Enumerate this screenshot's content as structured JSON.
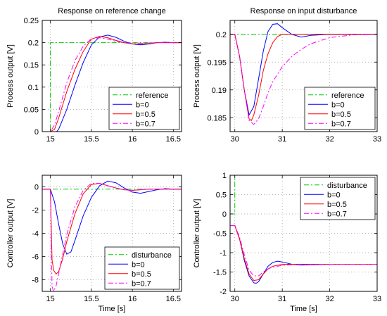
{
  "chart_data": [
    {
      "type": "line",
      "title": "Response on reference change",
      "xlabel": "",
      "ylabel": "Process output [V]",
      "xlim": [
        14.9,
        16.6
      ],
      "ylim": [
        0,
        0.25
      ],
      "xticks": [
        15,
        15.5,
        16,
        16.5
      ],
      "xtick_labels": [
        "15",
        "15.5",
        "16",
        "16.5"
      ],
      "yticks": [
        0,
        0.05,
        0.1,
        0.15,
        0.2,
        0.25
      ],
      "ytick_labels": [
        "0",
        "0.05",
        "0.1",
        "0.15",
        "0.2",
        "0.25"
      ],
      "grid": true,
      "legend": "bottom-right",
      "series": [
        {
          "name": "reference",
          "color": "#00cc00",
          "style": "dashdot",
          "x": [
            14.9,
            15.0,
            15.0,
            16.6
          ],
          "y": [
            0,
            0,
            0.2,
            0.2
          ]
        },
        {
          "name": "b=0",
          "color": "#0000ff",
          "style": "solid",
          "x": [
            14.9,
            15.0,
            15.05,
            15.1,
            15.2,
            15.3,
            15.4,
            15.5,
            15.6,
            15.7,
            15.8,
            15.9,
            16.0,
            16.1,
            16.2,
            16.3,
            16.4,
            16.5,
            16.6
          ],
          "y": [
            0,
            0,
            -0.005,
            0.005,
            0.05,
            0.105,
            0.155,
            0.195,
            0.213,
            0.217,
            0.212,
            0.203,
            0.197,
            0.195,
            0.197,
            0.2,
            0.201,
            0.2,
            0.2
          ]
        },
        {
          "name": "b=0.5",
          "color": "#ff0000",
          "style": "solid",
          "x": [
            14.9,
            15.0,
            15.05,
            15.1,
            15.2,
            15.3,
            15.4,
            15.5,
            15.6,
            15.7,
            15.8,
            15.9,
            16.0,
            16.1,
            16.2,
            16.3,
            16.4,
            16.5,
            16.6
          ],
          "y": [
            0,
            0,
            0.005,
            0.03,
            0.09,
            0.14,
            0.18,
            0.208,
            0.214,
            0.211,
            0.205,
            0.2,
            0.197,
            0.197,
            0.198,
            0.2,
            0.2,
            0.2,
            0.2
          ]
        },
        {
          "name": "b=0.7",
          "color": "#ff00ff",
          "style": "dashdot",
          "x": [
            14.9,
            15.0,
            15.05,
            15.1,
            15.2,
            15.3,
            15.4,
            15.5,
            15.6,
            15.7,
            15.8,
            15.9,
            16.0,
            16.1,
            16.2,
            16.3,
            16.4,
            16.5,
            16.6
          ],
          "y": [
            0,
            0,
            0.015,
            0.045,
            0.11,
            0.16,
            0.192,
            0.209,
            0.211,
            0.208,
            0.203,
            0.2,
            0.198,
            0.198,
            0.199,
            0.2,
            0.2,
            0.2,
            0.2
          ]
        }
      ]
    },
    {
      "type": "line",
      "title": "Response on input disturbance",
      "xlabel": "",
      "ylabel": "Process output [V]",
      "xlim": [
        29.9,
        33
      ],
      "ylim": [
        0.1825,
        0.2025
      ],
      "xticks": [
        30,
        31,
        32,
        33
      ],
      "xtick_labels": [
        "30",
        "31",
        "32",
        "33"
      ],
      "yticks": [
        0.185,
        0.19,
        0.195,
        0.2
      ],
      "ytick_labels": [
        "0.185",
        "0.19",
        "0.195",
        "0.2"
      ],
      "grid": true,
      "legend": "bottom-right",
      "series": [
        {
          "name": "reference",
          "color": "#00cc00",
          "style": "dashdot",
          "x": [
            29.9,
            33
          ],
          "y": [
            0.2,
            0.2
          ]
        },
        {
          "name": "b=0",
          "color": "#0000ff",
          "style": "solid",
          "x": [
            29.9,
            30.0,
            30.1,
            30.2,
            30.3,
            30.4,
            30.5,
            30.6,
            30.7,
            30.8,
            30.9,
            31.0,
            31.2,
            31.4,
            31.6,
            32.0,
            32.5,
            33.0
          ],
          "y": [
            0.2,
            0.2,
            0.196,
            0.19,
            0.1855,
            0.187,
            0.192,
            0.197,
            0.2005,
            0.2018,
            0.2019,
            0.2012,
            0.2,
            0.1995,
            0.1998,
            0.2,
            0.2,
            0.2
          ]
        },
        {
          "name": "b=0.5",
          "color": "#ff0000",
          "style": "solid",
          "x": [
            29.9,
            30.0,
            30.1,
            30.2,
            30.3,
            30.35,
            30.4,
            30.5,
            30.6,
            30.7,
            30.8,
            30.9,
            31.0,
            31.2,
            31.4,
            31.6,
            32.0,
            32.5,
            33.0
          ],
          "y": [
            0.2,
            0.2,
            0.196,
            0.19,
            0.1848,
            0.1845,
            0.1855,
            0.189,
            0.1935,
            0.1965,
            0.1985,
            0.1996,
            0.2,
            0.2,
            0.2,
            0.2,
            0.2,
            0.2,
            0.2
          ]
        },
        {
          "name": "b=0.7",
          "color": "#ff00ff",
          "style": "dashdot",
          "x": [
            29.9,
            30.0,
            30.1,
            30.2,
            30.3,
            30.4,
            30.5,
            30.6,
            30.7,
            30.8,
            31.0,
            31.2,
            31.4,
            31.6,
            32.0,
            32.5,
            33.0
          ],
          "y": [
            0.2,
            0.2,
            0.196,
            0.19,
            0.1845,
            0.1838,
            0.1848,
            0.187,
            0.1895,
            0.1915,
            0.1942,
            0.196,
            0.1973,
            0.1983,
            0.1994,
            0.1999,
            0.2
          ]
        }
      ]
    },
    {
      "type": "line",
      "title": "",
      "xlabel": "Time [s]",
      "ylabel": "Controller output [V]",
      "xlim": [
        14.9,
        16.6
      ],
      "ylim": [
        -9,
        1
      ],
      "xticks": [
        15,
        15.5,
        16,
        16.5
      ],
      "xtick_labels": [
        "15",
        "15.5",
        "16",
        "16.5"
      ],
      "yticks": [
        -8,
        -6,
        -4,
        -2,
        0
      ],
      "ytick_labels": [
        "-8",
        "-6",
        "-4",
        "-2",
        "0"
      ],
      "grid": true,
      "legend": "bottom-right",
      "series": [
        {
          "name": "disturbance",
          "color": "#00cc00",
          "style": "dashdot",
          "x": [
            14.9,
            16.6
          ],
          "y": [
            -0.2,
            -0.2
          ]
        },
        {
          "name": "b=0",
          "color": "#0000ff",
          "style": "solid",
          "x": [
            14.9,
            15.0,
            15.05,
            15.1,
            15.15,
            15.2,
            15.25,
            15.3,
            15.4,
            15.5,
            15.6,
            15.7,
            15.8,
            15.9,
            16.0,
            16.1,
            16.2,
            16.3,
            16.4,
            16.5,
            16.6
          ],
          "y": [
            -0.2,
            -0.2,
            -1.3,
            -3.2,
            -4.9,
            -5.8,
            -5.6,
            -4.6,
            -2.5,
            -0.9,
            0.1,
            0.5,
            0.35,
            -0.1,
            -0.45,
            -0.55,
            -0.4,
            -0.25,
            -0.15,
            -0.2,
            -0.2
          ]
        },
        {
          "name": "b=0.5",
          "color": "#ff0000",
          "style": "solid",
          "x": [
            14.9,
            15.0,
            15.02,
            15.04,
            15.07,
            15.1,
            15.15,
            15.2,
            15.3,
            15.4,
            15.5,
            15.6,
            15.7,
            15.8,
            15.9,
            16.0,
            16.2,
            16.4,
            16.6
          ],
          "y": [
            -0.2,
            -0.2,
            -6.3,
            -7.2,
            -7.5,
            -7.3,
            -6.2,
            -4.7,
            -2.3,
            -0.6,
            0.2,
            0.3,
            0.1,
            -0.1,
            -0.25,
            -0.3,
            -0.2,
            -0.2,
            -0.2
          ]
        },
        {
          "name": "b=0.7",
          "color": "#ff00ff",
          "style": "dashdot",
          "x": [
            14.9,
            15.0,
            15.02,
            15.04,
            15.07,
            15.1,
            15.15,
            15.2,
            15.3,
            15.4,
            15.5,
            15.6,
            15.7,
            15.8,
            15.9,
            16.0,
            16.2,
            16.4,
            16.6
          ],
          "y": [
            -0.2,
            -0.2,
            -8.6,
            -9.0,
            -8.5,
            -7.5,
            -5.8,
            -4.1,
            -1.7,
            -0.3,
            0.3,
            0.3,
            0.1,
            -0.1,
            -0.25,
            -0.3,
            -0.2,
            -0.2,
            -0.2
          ]
        }
      ]
    },
    {
      "type": "line",
      "title": "",
      "xlabel": "Time [s]",
      "ylabel": "Controller output [V]",
      "xlim": [
        29.9,
        33
      ],
      "ylim": [
        -2,
        1
      ],
      "xticks": [
        30,
        31,
        32,
        33
      ],
      "xtick_labels": [
        "30",
        "31",
        "32",
        "33"
      ],
      "yticks": [
        -2,
        -1.5,
        -1,
        -0.5,
        0,
        0.5,
        1
      ],
      "ytick_labels": [
        "-2",
        "-1.5",
        "-1",
        "-0.5",
        "0",
        "0.5",
        "1"
      ],
      "grid": true,
      "legend": "top-right",
      "series": [
        {
          "name": "disturbance",
          "color": "#00cc00",
          "style": "dashdot",
          "x": [
            29.9,
            30.0,
            30.0,
            33
          ],
          "y": [
            0,
            0,
            1,
            1
          ]
        },
        {
          "name": "b=0",
          "color": "#0000ff",
          "style": "solid",
          "x": [
            29.9,
            30.0,
            30.1,
            30.2,
            30.3,
            30.4,
            30.45,
            30.5,
            30.6,
            30.7,
            30.8,
            30.9,
            31.0,
            31.2,
            31.4,
            31.6,
            32.0,
            32.5,
            33.0
          ],
          "y": [
            -0.3,
            -0.3,
            -0.65,
            -1.2,
            -1.6,
            -1.78,
            -1.79,
            -1.75,
            -1.55,
            -1.35,
            -1.25,
            -1.22,
            -1.24,
            -1.3,
            -1.32,
            -1.31,
            -1.3,
            -1.3,
            -1.3
          ]
        },
        {
          "name": "b=0.5",
          "color": "#ff0000",
          "style": "solid",
          "x": [
            29.9,
            30.0,
            30.1,
            30.2,
            30.3,
            30.4,
            30.5,
            30.6,
            30.7,
            30.8,
            31.0,
            31.2,
            31.4,
            31.6,
            32.0,
            32.5,
            33.0
          ],
          "y": [
            -0.3,
            -0.3,
            -0.65,
            -1.15,
            -1.55,
            -1.72,
            -1.7,
            -1.55,
            -1.42,
            -1.35,
            -1.3,
            -1.3,
            -1.3,
            -1.3,
            -1.3,
            -1.3,
            -1.3
          ]
        },
        {
          "name": "b=0.7",
          "color": "#ff00ff",
          "style": "dashdot",
          "x": [
            29.9,
            30.0,
            30.1,
            30.2,
            30.3,
            30.4,
            30.5,
            30.6,
            30.7,
            30.8,
            31.0,
            31.2,
            31.4,
            31.6,
            32.0,
            32.5,
            33.0
          ],
          "y": [
            -0.3,
            -0.3,
            -0.6,
            -1.05,
            -1.45,
            -1.6,
            -1.6,
            -1.5,
            -1.42,
            -1.37,
            -1.33,
            -1.31,
            -1.3,
            -1.3,
            -1.3,
            -1.3,
            -1.3
          ]
        }
      ]
    }
  ]
}
